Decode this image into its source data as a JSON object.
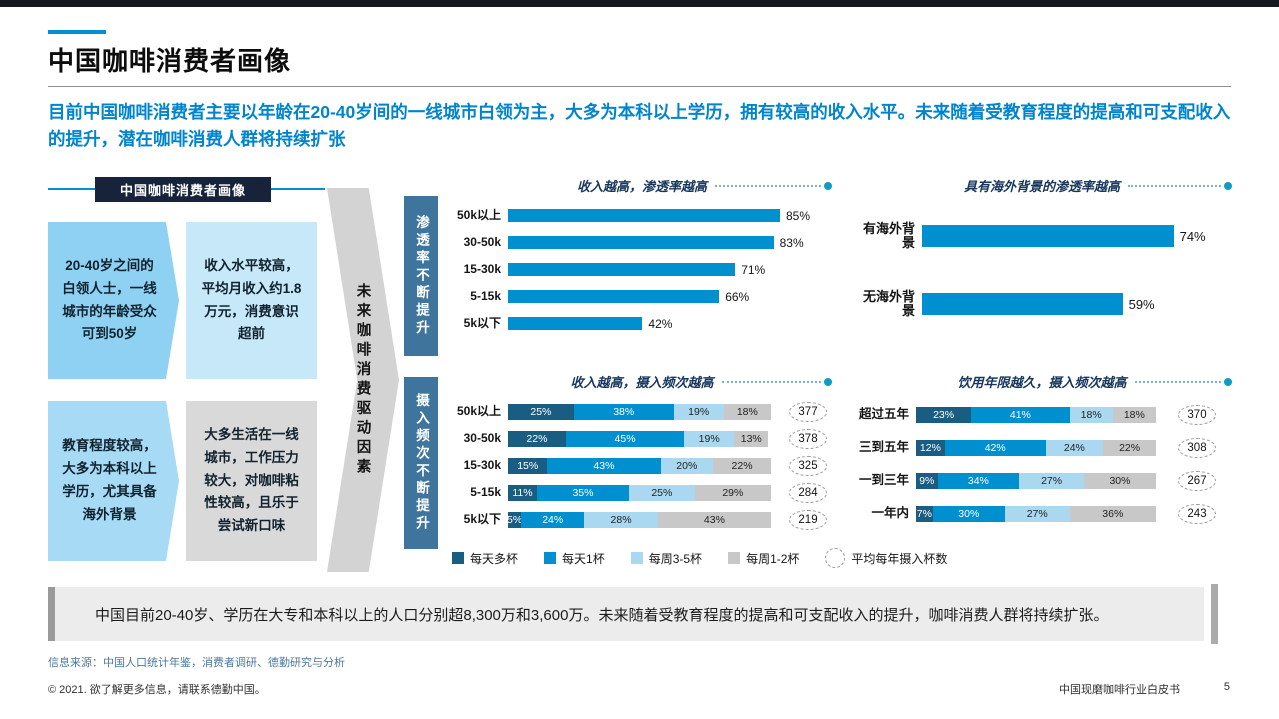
{
  "slide": {
    "title": "中国咖啡消费者画像",
    "intro": "目前中国咖啡消费者主要以年龄在20-40岁间的一线城市白领为主，大多为本科以上学历，拥有较高的收入水平。未来随着受教育程度的提高和可支配收入的提升，潜在咖啡消费人群将持续扩张"
  },
  "profile": {
    "header": "中国咖啡消费者画像",
    "boxes": [
      "20-40岁之间的白领人士，一线城市的年龄受众可到50岁",
      "收入水平较高，平均月收入约1.8万元，消费意识超前",
      "教育程度较高，大多为本科以上学历，尤其具备海外背景",
      "大多生活在一线城市，工作压力较大，对咖啡粘性较高，且乐于尝试新口味"
    ],
    "driver_label": "未来咖啡消费驱动因素",
    "side_labels": [
      "渗透率不断提升",
      "摄入频次不断提升"
    ]
  },
  "chart_data": [
    {
      "type": "bar",
      "title": "收入越高，渗透率越高",
      "categories": [
        "50k以上",
        "30-50k",
        "15-30k",
        "5-15k",
        "5k以下"
      ],
      "values": [
        85,
        83,
        71,
        66,
        42
      ],
      "unit": "%",
      "xlim": [
        0,
        100
      ],
      "bar_color": "#0090d0"
    },
    {
      "type": "bar",
      "title": "具有海外背景的渗透率越高",
      "categories": [
        "有海外背景",
        "无海外背景"
      ],
      "values": [
        74,
        59
      ],
      "unit": "%",
      "xlim": [
        0,
        100
      ],
      "bar_color": "#0090d0"
    },
    {
      "type": "stacked-bar",
      "title": "收入越高，摄入频次越高",
      "categories": [
        "50k以上",
        "30-50k",
        "15-30k",
        "5-15k",
        "5k以下"
      ],
      "series": [
        {
          "name": "每天多杯",
          "values": [
            25,
            22,
            15,
            11,
            5
          ]
        },
        {
          "name": "每天1杯",
          "values": [
            38,
            45,
            43,
            35,
            24
          ]
        },
        {
          "name": "每周3-5杯",
          "values": [
            19,
            19,
            20,
            25,
            28
          ]
        },
        {
          "name": "每周1-2杯",
          "values": [
            18,
            13,
            22,
            29,
            43
          ]
        }
      ],
      "unit": "%",
      "xlim": [
        0,
        100
      ],
      "annual_cups": [
        377,
        378,
        325,
        284,
        219
      ]
    },
    {
      "type": "stacked-bar",
      "title": "饮用年限越久，摄入频次越高",
      "categories": [
        "超过五年",
        "三到五年",
        "一到三年",
        "一年内"
      ],
      "series": [
        {
          "name": "每天多杯",
          "values": [
            23,
            12,
            9,
            7
          ]
        },
        {
          "name": "每天1杯",
          "values": [
            41,
            42,
            34,
            30
          ]
        },
        {
          "name": "每周3-5杯",
          "values": [
            18,
            24,
            27,
            27
          ]
        },
        {
          "name": "每周1-2杯",
          "values": [
            18,
            22,
            30,
            36
          ]
        }
      ],
      "unit": "%",
      "xlim": [
        0,
        100
      ],
      "annual_cups": [
        370,
        308,
        267,
        243
      ]
    }
  ],
  "legend": {
    "items": [
      {
        "label": "每天多杯",
        "color": "#1a5d82"
      },
      {
        "label": "每天1杯",
        "color": "#0090d0"
      },
      {
        "label": "每周3-5杯",
        "color": "#a9d8f0"
      },
      {
        "label": "每周1-2杯",
        "color": "#c8c8c8"
      },
      {
        "label": "平均每年摄入杯数",
        "marker": "dashed-circle"
      }
    ]
  },
  "summary": "中国目前20-40岁、学历在大专和本科以上的人口分别超8,300万和3,600万。未来随着受教育程度的提高和可支配收入的提升，咖啡消费人群将持续扩张。",
  "footer": {
    "source": "信息来源：中国人口统计年鉴，消费者调研、德勤研究与分析",
    "copyright": "© 2021. 欲了解更多信息，请联系德勤中国。",
    "doc_title": "中国现磨咖啡行业白皮书",
    "page_number": "5"
  },
  "colors": {
    "accent_blue": "#0090d0",
    "dark_header": "#16233a",
    "steel_label": "#3f759d",
    "leader_dot": "#0f9cc4"
  }
}
